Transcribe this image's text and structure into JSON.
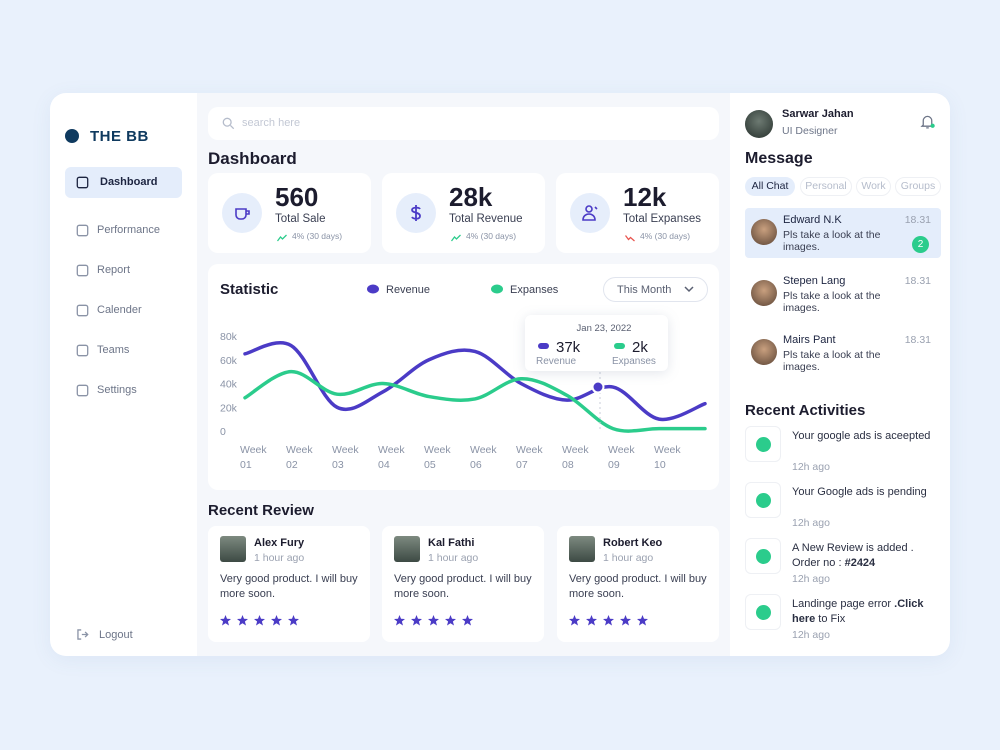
{
  "brand": "THE BB",
  "nav": [
    "Dashboard",
    "Performance",
    "Report",
    "Calender",
    "Teams",
    "Settings"
  ],
  "logout": "Logout",
  "search_placeholder": "search here",
  "page_title": "Dashboard",
  "stats": [
    {
      "value": "560",
      "label": "Total Sale",
      "change": "4% (30 days)"
    },
    {
      "value": "28k",
      "label": "Total Revenue",
      "change": "4% (30 days)"
    },
    {
      "value": "12k",
      "label": "Total Expanses",
      "change": "4% (30 days)"
    }
  ],
  "chart_data": {
    "type": "line",
    "title": "Statistic",
    "period": "This Month",
    "categories": [
      "Week 01",
      "Week 02",
      "Week 03",
      "Week 04",
      "Week 05",
      "Week 06",
      "Week 07",
      "Week 08",
      "Week 09",
      "Week 10",
      null
    ],
    "series": [
      {
        "name": "Revenue",
        "color": "#4b3bc6",
        "values": [
          65000,
          72000,
          20000,
          33000,
          60000,
          67000,
          40000,
          26000,
          37000,
          10000,
          23000
        ]
      },
      {
        "name": "Expanses",
        "color": "#2bcc8c",
        "values": [
          28000,
          50000,
          31000,
          40000,
          29000,
          27000,
          44000,
          30000,
          2000,
          2000,
          2000
        ]
      }
    ],
    "ylim": [
      0,
      80000
    ],
    "yticks": [
      0,
      {
        "value": 20000,
        "label": "20k"
      },
      {
        "value": 40000,
        "label": "40k"
      },
      {
        "value": 60000,
        "label": "60k"
      },
      {
        "value": 80000,
        "label": "80k"
      }
    ],
    "grid": false,
    "tooltip": {
      "date": "Jan 23, 2022",
      "revenue": "37k",
      "expanses": "2k"
    }
  },
  "reviews_title": "Recent Review",
  "reviews": [
    {
      "name": "Alex Fury",
      "time": "1 hour ago",
      "text": "Very good product. I will buy more soon."
    },
    {
      "name": "Kal Fathi",
      "time": "1 hour ago",
      "text": "Very good product. I will buy more soon."
    },
    {
      "name": "Robert Keo",
      "time": "1 hour ago",
      "text": "Very good product. I will buy more soon."
    }
  ],
  "profile": {
    "name": "Sarwar Jahan",
    "role": "UI Designer"
  },
  "messages_title": "Message",
  "chat_tabs": [
    "All Chat",
    "Personal",
    "Work",
    "Groups"
  ],
  "messages": [
    {
      "name": "Edward N.K",
      "time": "18.31",
      "text": "Pls take a look at the images.",
      "unread": "2"
    },
    {
      "name": "Stepen Lang",
      "time": "18.31",
      "text": "Pls take a look at the images."
    },
    {
      "name": "Mairs Pant",
      "time": "18.31",
      "text": "Pls take a look at the images."
    }
  ],
  "activities_title": "Recent Activities",
  "activities": [
    {
      "text": "Your google ads is aceepted",
      "time": "12h ago"
    },
    {
      "text": "Your Google ads is pending",
      "time": "12h ago"
    },
    {
      "text": "A New Review is added . Order no : ",
      "bold": "#2424",
      "time": "12h ago"
    },
    {
      "text": "Landinge page error ",
      "bold": ".Click here",
      "tail": " to Fix",
      "time": "12h ago"
    }
  ]
}
